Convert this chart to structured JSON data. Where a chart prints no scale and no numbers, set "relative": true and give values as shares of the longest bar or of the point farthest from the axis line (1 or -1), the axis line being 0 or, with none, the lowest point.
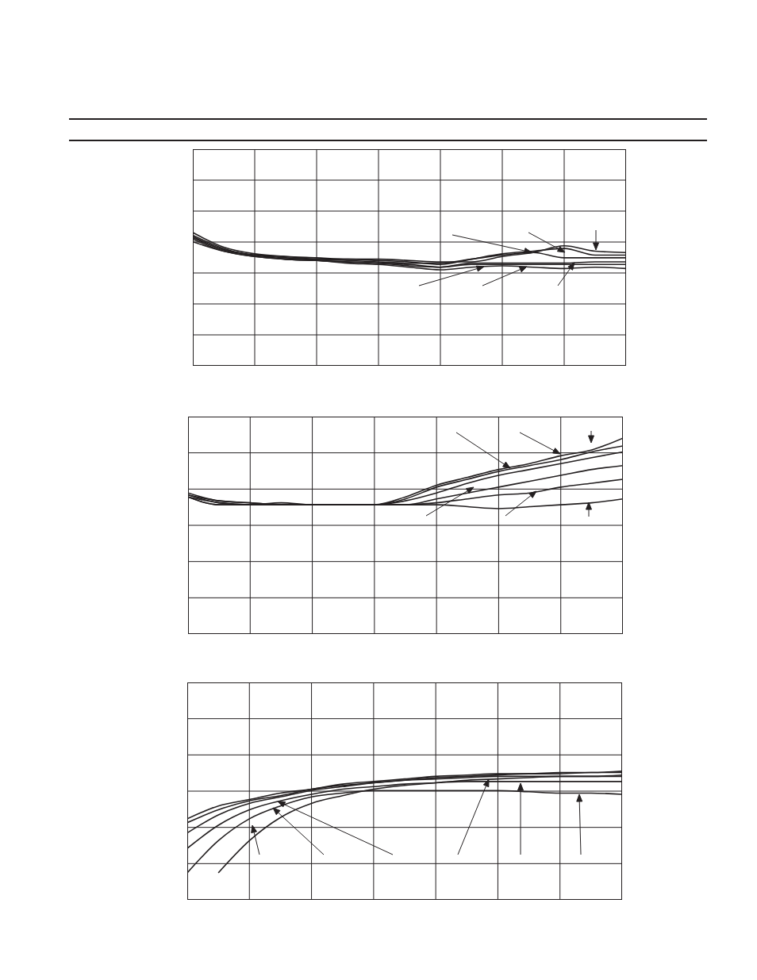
{
  "chart_data": [
    {
      "type": "line",
      "relative": true,
      "grid": true,
      "categories": [
        null,
        null,
        null,
        null,
        null,
        null,
        null,
        null,
        null,
        null,
        null,
        null,
        null,
        null,
        null
      ],
      "series": [
        {
          "color": "#231f20",
          "values": [
            1.0,
            0.89,
            0.84,
            0.82,
            0.81,
            0.8,
            0.8,
            0.79,
            0.78,
            0.78,
            0.82,
            0.85,
            0.9,
            0.86,
            0.85
          ]
        },
        {
          "color": "#231f20",
          "values": [
            0.98,
            0.88,
            0.83,
            0.82,
            0.8,
            0.8,
            0.79,
            0.78,
            0.76,
            0.8,
            0.84,
            0.86,
            0.88,
            0.83,
            0.83
          ]
        },
        {
          "color": "#231f20",
          "values": [
            0.97,
            0.87,
            0.83,
            0.81,
            0.8,
            0.79,
            0.78,
            0.77,
            0.77,
            0.8,
            0.83,
            0.85,
            0.81,
            0.81,
            0.81
          ]
        },
        {
          "color": "#231f20",
          "values": [
            0.96,
            0.87,
            0.83,
            0.8,
            0.79,
            0.78,
            0.77,
            0.76,
            0.74,
            0.77,
            0.77,
            0.77,
            0.77,
            0.78,
            0.78
          ]
        },
        {
          "color": "#231f20",
          "values": [
            0.95,
            0.86,
            0.82,
            0.8,
            0.79,
            0.78,
            0.77,
            0.75,
            0.74,
            0.76,
            0.76,
            0.76,
            0.76,
            0.76,
            0.76
          ]
        },
        {
          "color": "#231f20",
          "values": [
            0.93,
            0.86,
            0.82,
            0.8,
            0.79,
            0.77,
            0.76,
            0.74,
            0.72,
            0.74,
            0.75,
            0.74,
            0.73,
            0.74,
            0.73
          ]
        }
      ]
    },
    {
      "type": "line",
      "relative": true,
      "grid": true,
      "categories": [
        null,
        null,
        null,
        null,
        null,
        null,
        null,
        null,
        null,
        null,
        null,
        null,
        null,
        null,
        null
      ],
      "series": [
        {
          "color": "#231f20",
          "values": [
            0.72,
            0.68,
            0.67,
            0.66,
            0.66,
            0.66,
            0.66,
            0.7,
            0.76,
            0.8,
            0.84,
            0.87,
            0.91,
            0.94,
            1.0
          ]
        },
        {
          "color": "#231f20",
          "values": [
            0.71,
            0.68,
            0.67,
            0.66,
            0.66,
            0.66,
            0.66,
            0.69,
            0.75,
            0.79,
            0.83,
            0.86,
            0.89,
            0.93,
            0.96
          ]
        },
        {
          "color": "#231f20",
          "values": [
            0.71,
            0.67,
            0.66,
            0.66,
            0.66,
            0.66,
            0.66,
            0.68,
            0.72,
            0.77,
            0.81,
            0.84,
            0.87,
            0.9,
            0.93
          ]
        },
        {
          "color": "#231f20",
          "values": [
            0.7,
            0.67,
            0.66,
            0.67,
            0.66,
            0.66,
            0.66,
            0.66,
            0.69,
            0.72,
            0.75,
            0.78,
            0.81,
            0.84,
            0.86
          ]
        },
        {
          "color": "#231f20",
          "values": [
            0.7,
            0.66,
            0.66,
            0.66,
            0.66,
            0.66,
            0.66,
            0.66,
            0.67,
            0.69,
            0.71,
            0.72,
            0.75,
            0.77,
            0.79
          ]
        },
        {
          "color": "#231f20",
          "values": [
            0.7,
            0.66,
            0.66,
            0.66,
            0.66,
            0.66,
            0.66,
            0.66,
            0.66,
            0.65,
            0.64,
            0.65,
            0.66,
            0.67,
            0.69
          ]
        }
      ]
    },
    {
      "type": "line",
      "relative": true,
      "grid": true,
      "categories": [
        null,
        null,
        null,
        null,
        null,
        null,
        null,
        null,
        null,
        null,
        null,
        null,
        null,
        null,
        null
      ],
      "series": [
        {
          "color": "#231f20",
          "values": [
            0.63,
            0.73,
            0.78,
            0.83,
            0.86,
            0.9,
            0.92,
            0.94,
            0.96,
            0.97,
            0.98,
            0.98,
            0.99,
            0.99,
            1.0
          ]
        },
        {
          "color": "#231f20",
          "values": [
            0.6,
            0.7,
            0.77,
            0.81,
            0.86,
            0.89,
            0.91,
            0.93,
            0.95,
            0.96,
            0.97,
            0.98,
            0.98,
            0.99,
            0.99
          ]
        },
        {
          "color": "#231f20",
          "values": [
            0.52,
            0.66,
            0.75,
            0.8,
            0.85,
            0.88,
            0.91,
            0.93,
            0.94,
            0.95,
            0.96,
            0.96,
            0.96,
            0.96,
            0.96
          ]
        },
        {
          "color": "#231f20",
          "values": [
            0.4,
            0.58,
            0.7,
            0.77,
            0.82,
            0.86,
            0.88,
            0.9,
            0.91,
            0.92,
            0.92,
            0.92,
            0.92,
            0.92,
            0.92
          ]
        },
        {
          "color": "#231f20",
          "values": [
            0.21,
            0.46,
            0.63,
            0.73,
            0.8,
            0.83,
            0.85,
            0.85,
            0.85,
            0.85,
            0.85,
            0.84,
            0.83,
            0.83,
            0.82
          ]
        },
        {
          "color": "#231f20",
          "values": [
            null,
            0.21,
            0.46,
            0.64,
            0.75,
            0.81,
            0.86,
            0.89,
            0.91,
            0.93,
            0.94,
            0.95,
            0.96,
            0.96,
            0.97
          ]
        }
      ]
    }
  ]
}
